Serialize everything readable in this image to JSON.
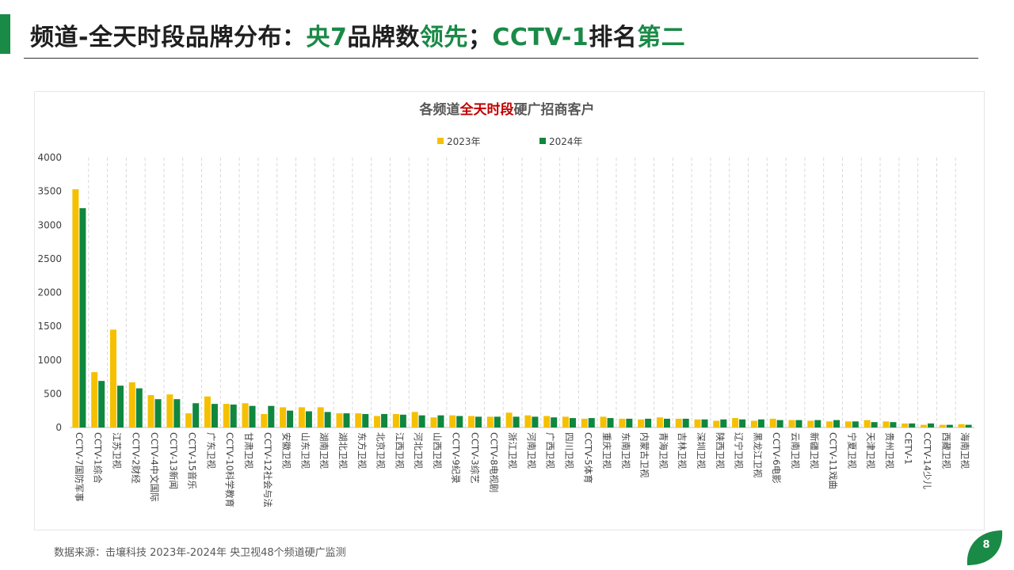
{
  "header": {
    "title_p1": "频道-全天时段品牌分布：",
    "title_p2": "央7",
    "title_p3": "品牌数",
    "title_p4": "领先",
    "title_p5": "；",
    "title_p6": "CCTV-1",
    "title_p7": "排名",
    "title_p8": "第二"
  },
  "footer": {
    "source": "数据来源：击壤科技  2023年-2024年 央卫视48个频道硬广监测",
    "page_number": "8"
  },
  "colors": {
    "brand_green": "#1a8a47",
    "series_2023": "#f5c000",
    "series_2024": "#10873f",
    "title_highlight": "#c00000"
  },
  "chart_data": {
    "type": "bar",
    "title_p1": "各频道",
    "title_p2": "全天时段",
    "title_p3": "硬广招商客户",
    "legend_position": "top-center",
    "grid": "vertical-dashed",
    "ylim": [
      0,
      4000
    ],
    "yticks": [
      0,
      500,
      1000,
      1500,
      2000,
      2500,
      3000,
      3500,
      4000
    ],
    "categories": [
      "CCTV-7国防军事",
      "CCTV-1综合",
      "江苏卫视",
      "CCTV-2财经",
      "CCTV-4中文国际",
      "CCTV-13新闻",
      "CCTV-15音乐",
      "广东卫视",
      "CCTV-10科学教育",
      "甘肃卫视",
      "CCTV-12社会与法",
      "安徽卫视",
      "山东卫视",
      "湖南卫视",
      "湖北卫视",
      "东方卫视",
      "北京卫视",
      "江西卫视",
      "河北卫视",
      "山西卫视",
      "CCTV-9纪录",
      "CCTV-3综艺",
      "CCTV-8电视剧",
      "浙江卫视",
      "河南卫视",
      "广西卫视",
      "四川卫视",
      "CCTV-5体育",
      "重庆卫视",
      "东南卫视",
      "内蒙古卫视",
      "青海卫视",
      "吉林卫视",
      "深圳卫视",
      "陕西卫视",
      "辽宁卫视",
      "黑龙江卫视",
      "CCTV-6电影",
      "云南卫视",
      "新疆卫视",
      "CCTV-11戏曲",
      "宁夏卫视",
      "天津卫视",
      "贵州卫视",
      "CETV-1",
      "CCTV-14少儿",
      "西藏卫视",
      "海南卫视"
    ],
    "series": [
      {
        "name": "2023年",
        "color": "#f5c000",
        "values": [
          3530,
          820,
          1450,
          670,
          480,
          490,
          210,
          460,
          350,
          360,
          200,
          300,
          300,
          300,
          210,
          210,
          170,
          200,
          230,
          150,
          180,
          170,
          160,
          220,
          180,
          170,
          160,
          130,
          160,
          130,
          120,
          150,
          130,
          120,
          100,
          140,
          100,
          130,
          110,
          100,
          90,
          90,
          110,
          90,
          60,
          40,
          40,
          50
        ]
      },
      {
        "name": "2024年",
        "color": "#10873f",
        "values": [
          3250,
          690,
          620,
          580,
          420,
          420,
          360,
          350,
          340,
          320,
          320,
          250,
          240,
          230,
          210,
          200,
          200,
          190,
          180,
          180,
          170,
          160,
          160,
          160,
          160,
          150,
          140,
          140,
          140,
          130,
          130,
          130,
          130,
          120,
          120,
          120,
          120,
          110,
          110,
          110,
          110,
          90,
          80,
          80,
          60,
          60,
          40,
          40
        ]
      }
    ]
  }
}
